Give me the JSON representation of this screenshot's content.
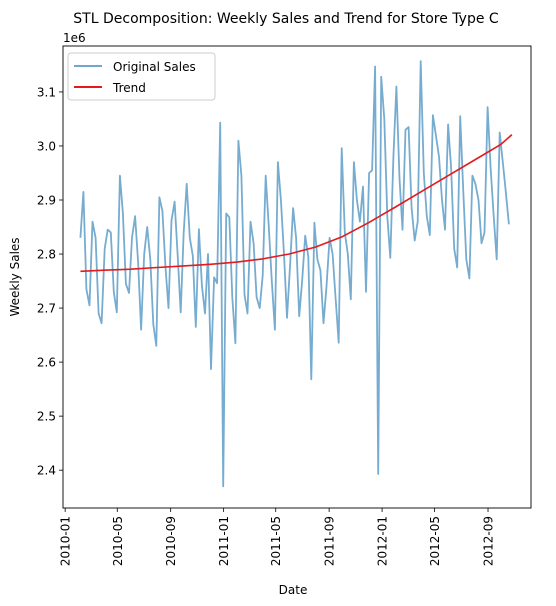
{
  "chart_data": {
    "type": "line",
    "title": "STL Decomposition: Weekly Sales and Trend for Store Type C",
    "xlabel": "Date",
    "ylabel": "Weekly Sales",
    "y_offset_label": "1e6",
    "ylim": [
      2.33,
      3.185
    ],
    "xlim": [
      "2009-12-27",
      "2012-12-09"
    ],
    "yticks": [
      2.4,
      2.5,
      2.6,
      2.7,
      2.8,
      2.9,
      3.0,
      3.1
    ],
    "ytick_labels": [
      "2.4",
      "2.5",
      "2.6",
      "2.7",
      "2.8",
      "2.9",
      "3.0",
      "3.1"
    ],
    "xticks": [
      "2010-01-01",
      "2010-05-01",
      "2010-09-01",
      "2011-01-01",
      "2011-05-01",
      "2011-09-01",
      "2012-01-01",
      "2012-05-01",
      "2012-09-01"
    ],
    "xtick_labels": [
      "2010-01",
      "2010-05",
      "2010-09",
      "2011-01",
      "2011-05",
      "2011-09",
      "2012-01",
      "2012-05",
      "2012-09"
    ],
    "grid": false,
    "legend": {
      "position": "upper-left",
      "entries": [
        "Original Sales",
        "Trend"
      ]
    },
    "series": [
      {
        "name": "Original Sales",
        "color": "#6fa8cd",
        "start_date": "2010-02-05",
        "interval_days": 7,
        "values": [
          2.83,
          2.915,
          2.735,
          2.705,
          2.86,
          2.83,
          2.69,
          2.672,
          2.81,
          2.845,
          2.84,
          2.73,
          2.692,
          2.945,
          2.875,
          2.745,
          2.728,
          2.83,
          2.87,
          2.785,
          2.66,
          2.8,
          2.85,
          2.79,
          2.67,
          2.63,
          2.905,
          2.88,
          2.775,
          2.7,
          2.862,
          2.897,
          2.8,
          2.692,
          2.84,
          2.93,
          2.83,
          2.797,
          2.665,
          2.846,
          2.742,
          2.69,
          2.8,
          2.587,
          2.757,
          2.746,
          3.043,
          2.37,
          2.875,
          2.868,
          2.72,
          2.635,
          3.01,
          2.945,
          2.725,
          2.69,
          2.86,
          2.82,
          2.72,
          2.7,
          2.76,
          2.945,
          2.85,
          2.75,
          2.66,
          2.97,
          2.9,
          2.8,
          2.682,
          2.78,
          2.885,
          2.83,
          2.685,
          2.752,
          2.834,
          2.795,
          2.568,
          2.858,
          2.79,
          2.77,
          2.672,
          2.74,
          2.83,
          2.8,
          2.718,
          2.636,
          2.996,
          2.84,
          2.8,
          2.716,
          2.97,
          2.9,
          2.86,
          2.925,
          2.73,
          2.95,
          2.955,
          3.147,
          2.393,
          3.128,
          3.05,
          2.87,
          2.793,
          2.98,
          3.11,
          2.94,
          2.845,
          3.03,
          3.035,
          2.885,
          2.825,
          2.86,
          3.157,
          2.95,
          2.87,
          2.835,
          3.057,
          3.02,
          2.98,
          2.9,
          2.845,
          3.04,
          2.96,
          2.81,
          2.775,
          3.055,
          2.915,
          2.79,
          2.755,
          2.945,
          2.93,
          2.9,
          2.82,
          2.84,
          3.072,
          2.96,
          2.87,
          2.79,
          3.025,
          2.97,
          2.915,
          2.855
        ]
      },
      {
        "name": "Trend",
        "color": "#e41a1c",
        "points": [
          [
            "2010-02-05",
            2.768
          ],
          [
            "2010-04-01",
            2.77
          ],
          [
            "2010-06-01",
            2.772
          ],
          [
            "2010-08-01",
            2.775
          ],
          [
            "2010-10-01",
            2.778
          ],
          [
            "2010-12-01",
            2.781
          ],
          [
            "2011-02-01",
            2.785
          ],
          [
            "2011-04-01",
            2.791
          ],
          [
            "2011-06-01",
            2.8
          ],
          [
            "2011-08-01",
            2.813
          ],
          [
            "2011-10-01",
            2.832
          ],
          [
            "2011-12-01",
            2.858
          ],
          [
            "2012-02-01",
            2.887
          ],
          [
            "2012-04-01",
            2.916
          ],
          [
            "2012-06-01",
            2.945
          ],
          [
            "2012-08-01",
            2.974
          ],
          [
            "2012-10-01",
            3.003
          ],
          [
            "2012-10-26",
            3.021
          ]
        ]
      }
    ]
  }
}
